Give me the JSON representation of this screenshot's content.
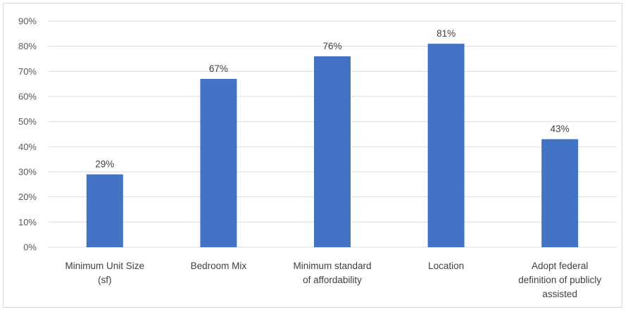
{
  "chart_data": {
    "type": "bar",
    "categories": [
      [
        "Minimum Unit Size",
        "(sf)"
      ],
      [
        "Bedroom Mix"
      ],
      [
        "Minimum standard",
        "of affordability"
      ],
      [
        "Location"
      ],
      [
        "Adopt federal",
        "definition of publicly",
        "assisted"
      ]
    ],
    "values": [
      29,
      67,
      76,
      81,
      43
    ],
    "value_labels": [
      "29%",
      "67%",
      "76%",
      "81%",
      "43%"
    ],
    "y_ticks": [
      "0%",
      "10%",
      "20%",
      "30%",
      "40%",
      "50%",
      "60%",
      "70%",
      "80%",
      "90%"
    ],
    "ylim": [
      0,
      90
    ],
    "grid": true,
    "bar_color": "#4472c4",
    "grid_color": "#d9d9d9",
    "title": "",
    "xlabel": "",
    "ylabel": ""
  }
}
